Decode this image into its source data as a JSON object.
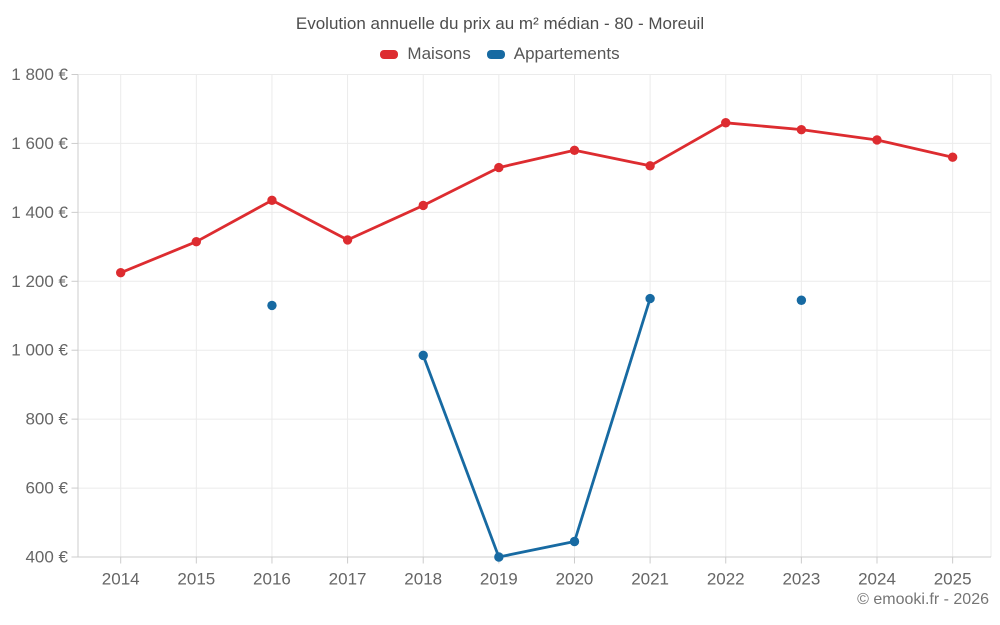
{
  "title": "Evolution annuelle du prix au m² médian - 80 - Moreuil",
  "footer": {
    "copyright": "© emooki.fr - 2026"
  },
  "colors": {
    "maisons_red": "#dd2c30",
    "appartements_blue": "#176aa2",
    "gridline": "#ebebeb",
    "axis_line": "#cccccc",
    "tick_label": "#666666",
    "title_text": "#4d4d4d"
  },
  "chart_data": {
    "type": "line",
    "title": "Evolution annuelle du prix au m² médian - 80 - Moreuil",
    "categories": [
      "2014",
      "2015",
      "2016",
      "2017",
      "2018",
      "2019",
      "2020",
      "2021",
      "2022",
      "2023",
      "2024",
      "2025"
    ],
    "series": [
      {
        "name": "Maisons",
        "color": "#dd2c30",
        "values": [
          1225,
          1315,
          1435,
          1320,
          1420,
          1530,
          1580,
          1535,
          1660,
          1640,
          1610,
          1560
        ]
      },
      {
        "name": "Appartements",
        "color": "#176aa2",
        "values": [
          null,
          null,
          1130,
          null,
          985,
          400,
          445,
          1150,
          null,
          1145,
          null,
          null
        ]
      }
    ],
    "y_axis": {
      "min": 400,
      "max": 1800,
      "tick_step": 200,
      "tick_labels": [
        "400 €",
        "600 €",
        "800 €",
        "1 000 €",
        "1 200 €",
        "1 400 €",
        "1 600 €",
        "1 800 €"
      ]
    },
    "x_axis": {
      "tick_labels": [
        "2014",
        "2015",
        "2016",
        "2017",
        "2018",
        "2019",
        "2020",
        "2021",
        "2022",
        "2023",
        "2024",
        "2025"
      ]
    },
    "grid": true,
    "legend_position": "top",
    "unit": "€"
  }
}
